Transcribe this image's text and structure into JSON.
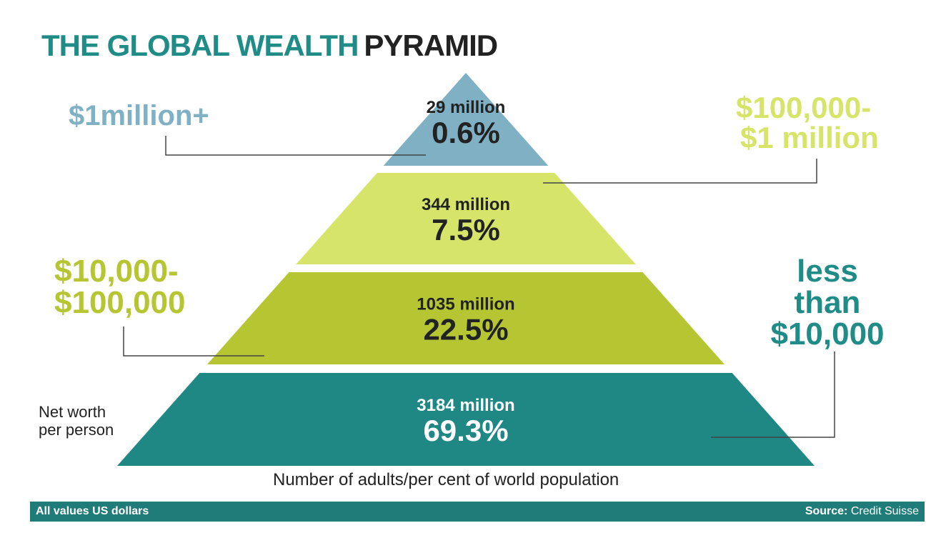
{
  "title": {
    "part1": "THE GLOBAL WEALTH",
    "part2": "PYRAMID"
  },
  "tier_labels": {
    "top": "$1million+",
    "upper_line1": "$100,000-",
    "upper_line2": "$1 million",
    "middle_line1": "$10,000-",
    "middle_line2": "$100,000",
    "base_line1": "less",
    "base_line2": "than",
    "base_line3": "$10,000"
  },
  "side_note": {
    "line1": "Net worth",
    "line2": "per person"
  },
  "caption": "Number of adults/per cent of world population",
  "footer": {
    "left": "All values US dollars",
    "source_label": "Source:",
    "source_value": "Credit Suisse"
  },
  "colors": {
    "top": "#7fb0c4",
    "upper": "#d7e46a",
    "middle": "#b5c632",
    "base": "#1f8784",
    "teal_text": "#1f8c88"
  },
  "chart_data": {
    "type": "pyramid",
    "title": "THE GLOBAL WEALTH PYRAMID",
    "categories": [
      "$1million+",
      "$100,000-$1 million",
      "$10,000-$100,000",
      "less than $10,000"
    ],
    "series": [
      {
        "name": "Number of adults",
        "values": [
          "29 million",
          "344 million",
          "1035 million",
          "3184 million"
        ]
      },
      {
        "name": "per cent of world population",
        "values": [
          "0.6%",
          "7.5%",
          "22.5%",
          "69.3%"
        ]
      }
    ],
    "adults_millions": [
      29,
      344,
      1035,
      3184
    ],
    "percent": [
      0.6,
      7.5,
      22.5,
      69.3
    ]
  }
}
